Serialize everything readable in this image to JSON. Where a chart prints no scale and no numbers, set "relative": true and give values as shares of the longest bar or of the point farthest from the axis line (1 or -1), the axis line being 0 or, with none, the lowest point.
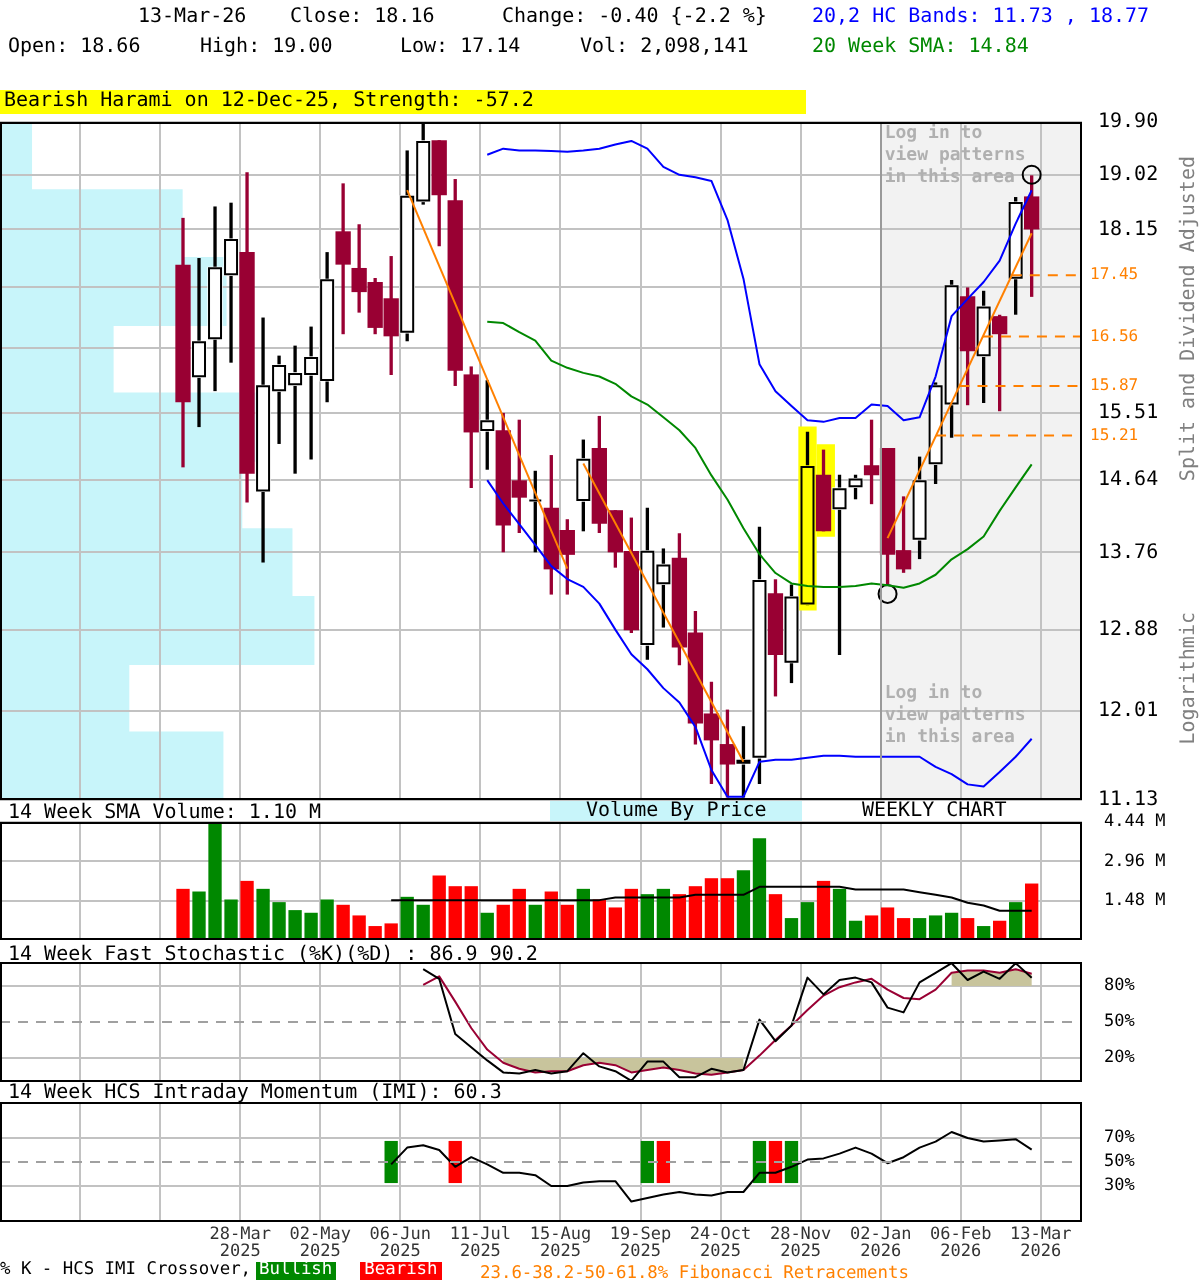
{
  "chart_data": [
    {
      "type": "candlestick",
      "subtitle": "Bearish Harami on 12-Dec-25, Strength: -57.2",
      "ylabel": "Split and Dividend Adjusted",
      "annotations": [
        "13-Mar-26",
        "Close: 18.16",
        "Change: -0.40 {-2.2 %}",
        "Open: 18.66",
        "High: 19.00",
        "Low: 17.14",
        "Vol: 2,098,141",
        "Logarithmic",
        "WEEKLY CHART"
      ],
      "x": [
        "2025-03-03",
        "2025-03-10",
        "2025-03-17",
        "2025-03-24",
        "2025-03-31",
        "2025-04-07",
        "2025-04-14",
        "2025-04-21",
        "2025-04-28",
        "2025-05-05",
        "2025-05-12",
        "2025-05-19",
        "2025-05-26",
        "2025-06-02",
        "2025-06-09",
        "2025-06-16",
        "2025-06-23",
        "2025-06-30",
        "2025-07-07",
        "2025-07-14",
        "2025-07-21",
        "2025-07-28",
        "2025-08-04",
        "2025-08-11",
        "2025-08-18",
        "2025-08-25",
        "2025-09-01",
        "2025-09-08",
        "2025-09-15",
        "2025-09-22",
        "2025-09-29",
        "2025-10-06",
        "2025-10-13",
        "2025-10-20",
        "2025-10-27",
        "2025-11-03",
        "2025-11-10",
        "2025-11-17",
        "2025-11-24",
        "2025-12-01",
        "2025-12-08",
        "2025-12-15",
        "2025-12-22",
        "2025-12-29",
        "2026-01-05",
        "2026-01-12",
        "2026-01-19",
        "2026-01-26",
        "2026-02-02",
        "2026-02-09",
        "2026-02-16",
        "2026-02-23",
        "2026-03-02",
        "2026-03-09"
      ],
      "ohlc": [
        [
          17.6,
          18.32,
          14.81,
          15.66
        ],
        [
          15.99,
          17.7,
          15.33,
          16.49
        ],
        [
          16.52,
          18.5,
          15.81,
          17.57
        ],
        [
          17.45,
          18.56,
          16.2,
          18.0
        ],
        [
          17.79,
          19.05,
          14.37,
          14.73
        ],
        [
          14.5,
          16.82,
          13.65,
          15.88
        ],
        [
          15.8,
          16.28,
          15.11,
          16.16
        ],
        [
          15.88,
          16.42,
          14.73,
          16.05
        ],
        [
          16.02,
          16.69,
          14.91,
          16.27
        ],
        [
          15.94,
          17.79,
          15.66,
          17.39
        ],
        [
          18.11,
          18.87,
          16.6,
          17.62
        ],
        [
          17.55,
          18.22,
          16.91,
          17.21
        ],
        [
          17.34,
          17.4,
          16.6,
          16.69
        ],
        [
          17.1,
          17.73,
          16.03,
          16.57
        ],
        [
          16.61,
          19.41,
          16.5,
          18.68
        ],
        [
          18.59,
          19.89,
          18.55,
          19.58
        ],
        [
          19.58,
          19.58,
          17.9,
          18.7
        ],
        [
          18.6,
          18.94,
          15.88,
          16.09
        ],
        [
          16.02,
          16.13,
          14.55,
          15.26
        ],
        [
          15.27,
          15.94,
          14.78,
          15.41
        ],
        [
          15.27,
          15.5,
          13.77,
          14.09
        ],
        [
          14.63,
          15.41,
          14.0,
          14.43
        ],
        [
          14.38,
          14.75,
          13.77,
          14.4
        ],
        [
          14.29,
          14.95,
          13.28,
          13.57
        ],
        [
          14.02,
          14.15,
          13.28,
          13.74
        ],
        [
          14.38,
          15.15,
          14.02,
          14.91
        ],
        [
          15.04,
          15.46,
          14.0,
          14.11
        ],
        [
          14.26,
          14.26,
          13.59,
          13.77
        ],
        [
          13.77,
          14.17,
          12.85,
          12.88
        ],
        [
          12.71,
          14.29,
          12.56,
          13.78
        ],
        [
          13.39,
          13.8,
          12.91,
          13.62
        ],
        [
          13.69,
          13.98,
          12.5,
          12.69
        ],
        [
          12.84,
          13.08,
          11.68,
          11.89
        ],
        [
          11.98,
          12.31,
          11.29,
          11.72
        ],
        [
          11.67,
          12.02,
          11.16,
          11.48
        ],
        [
          11.48,
          11.85,
          11.16,
          11.52
        ],
        [
          11.54,
          14.06,
          11.29,
          13.44
        ],
        [
          13.28,
          13.44,
          12.17,
          12.61
        ],
        [
          12.52,
          13.38,
          12.31,
          13.25
        ],
        [
          13.16,
          15.25,
          13.16,
          14.82
        ],
        [
          14.7,
          15.02,
          14.02,
          14.02
        ],
        [
          14.28,
          14.7,
          12.61,
          14.54
        ],
        [
          14.55,
          14.7,
          14.41,
          14.66
        ],
        [
          14.82,
          15.41,
          14.35,
          14.71
        ],
        [
          15.04,
          15.04,
          13.4,
          13.74
        ],
        [
          13.78,
          14.43,
          13.53,
          13.57
        ],
        [
          13.91,
          14.93,
          13.69,
          14.64
        ],
        [
          14.84,
          15.91,
          14.6,
          15.88
        ],
        [
          15.62,
          17.37,
          15.19,
          17.3
        ],
        [
          17.13,
          17.26,
          15.62,
          16.36
        ],
        [
          16.28,
          17.21,
          15.65,
          16.99
        ],
        [
          16.84,
          16.86,
          15.54,
          16.6
        ],
        [
          17.4,
          18.65,
          16.88,
          18.58
        ],
        [
          18.66,
          19.0,
          17.14,
          18.16
        ]
      ],
      "colors": [
        "#990033",
        "#ffffff",
        "#ffffff",
        "#ffffff",
        "#990033",
        "#ffffff",
        "#ffffff",
        "#ffffff",
        "#ffffff",
        "#ffffff",
        "#990033",
        "#990033",
        "#990033",
        "#990033",
        "#ffffff",
        "#ffffff",
        "#990033",
        "#990033",
        "#990033",
        "#ffffff",
        "#990033",
        "#990033",
        "#ffffff",
        "#990033",
        "#990033",
        "#ffffff",
        "#990033",
        "#990033",
        "#990033",
        "#ffffff",
        "#ffffff",
        "#990033",
        "#990033",
        "#990033",
        "#990033",
        "#ffffff",
        "#ffffff",
        "#990033",
        "#ffffff",
        "#ffff00",
        "#990033",
        "#ffffff",
        "#ffffff",
        "#990033",
        "#990033",
        "#990033",
        "#ffffff",
        "#ffffff",
        "#ffffff",
        "#990033",
        "#ffffff",
        "#990033",
        "#ffffff",
        "#990033"
      ],
      "series": [
        {
          "type": "line",
          "name": "20,2 HC Bands: 11.73 , 18.77",
          "color": "#0000ff",
          "values": [
            null,
            null,
            null,
            null,
            null,
            null,
            null,
            null,
            null,
            null,
            null,
            null,
            null,
            null,
            null,
            null,
            null,
            null,
            null,
            19.35,
            19.45,
            19.42,
            19.42,
            19.41,
            19.4,
            19.42,
            19.45,
            19.52,
            19.58,
            19.45,
            19.15,
            19.02,
            18.98,
            18.92,
            18.3,
            17.4,
            16.17,
            15.8,
            15.6,
            15.41,
            15.39,
            15.44,
            15.44,
            15.62,
            15.6,
            15.41,
            15.45,
            16.0,
            16.85,
            17.1,
            17.35,
            17.67,
            18.24,
            18.77
          ]
        },
        {
          "type": "line",
          "color": "#0000ff",
          "values": [
            null,
            null,
            null,
            null,
            null,
            null,
            null,
            null,
            null,
            null,
            null,
            null,
            null,
            null,
            null,
            null,
            null,
            null,
            null,
            14.64,
            14.35,
            14.1,
            13.85,
            13.6,
            13.45,
            13.36,
            13.17,
            12.88,
            12.61,
            12.45,
            12.25,
            12.1,
            11.85,
            11.42,
            11.16,
            11.16,
            11.5,
            11.52,
            11.52,
            11.54,
            11.56,
            11.56,
            11.55,
            11.55,
            11.55,
            11.55,
            11.55,
            11.45,
            11.38,
            11.28,
            11.26,
            11.4,
            11.55,
            11.73
          ]
        },
        {
          "type": "line",
          "name": "20 Week SMA: 14.84",
          "color": "#008800",
          "values": [
            null,
            null,
            null,
            null,
            null,
            null,
            null,
            null,
            null,
            null,
            null,
            null,
            null,
            null,
            null,
            null,
            null,
            null,
            null,
            16.77,
            16.75,
            16.62,
            16.5,
            16.22,
            16.12,
            16.05,
            16.0,
            15.9,
            15.73,
            15.62,
            15.45,
            15.28,
            15.05,
            14.7,
            14.4,
            14.05,
            13.74,
            13.52,
            13.4,
            13.37,
            13.36,
            13.36,
            13.37,
            13.4,
            13.38,
            13.35,
            13.4,
            13.5,
            13.68,
            13.8,
            13.95,
            14.26,
            14.55,
            14.84
          ]
        },
        {
          "type": "scatter",
          "marker": "circle",
          "color": "#000000",
          "x": [
            "2026-01-05",
            "2026-03-09"
          ],
          "values": [
            13.28,
            19.02
          ]
        },
        {
          "type": "line",
          "color": "#ff8000",
          "x": [
            "2025-06-09",
            "2025-08-18"
          ],
          "values": [
            18.77,
            13.57
          ]
        },
        {
          "type": "line",
          "color": "#ff8000",
          "x": [
            "2025-08-25",
            "2025-11-03"
          ],
          "values": [
            14.85,
            11.5
          ]
        },
        {
          "type": "line",
          "color": "#ff8000",
          "x": [
            "2026-01-05",
            "2026-03-09"
          ],
          "values": [
            13.93,
            18.09
          ]
        }
      ],
      "xlim": [
        "2024-12-13",
        "2026-03-31"
      ],
      "xticks": [
        {
          "value": "2025-01-17",
          "label": null
        },
        {
          "value": "2025-02-21",
          "label": null
        },
        {
          "value": "2025-03-28",
          "label": null
        },
        {
          "value": "2025-05-02",
          "label": null
        },
        {
          "value": "2025-06-06",
          "label": null
        },
        {
          "value": "2025-07-11",
          "label": null
        },
        {
          "value": "2025-08-15",
          "label": null
        },
        {
          "value": "2025-09-19",
          "label": null
        },
        {
          "value": "2025-10-24",
          "label": null
        },
        {
          "value": "2025-11-28",
          "label": null
        },
        {
          "value": "2026-01-02",
          "label": null
        },
        {
          "value": "2026-02-06",
          "label": null
        },
        {
          "value": "2026-03-13",
          "label": null
        }
      ],
      "ylim": [
        11.13,
        19.9
      ],
      "yticks": [
        11.13,
        12.01,
        12.88,
        13.76,
        14.64,
        15.51,
        {
          "value": 16.39,
          "label": null
        },
        {
          "value": 17.27,
          "label": null
        },
        18.15,
        19.02,
        {
          "value": 19.9,
          "label": "19.90"
        }
      ],
      "log": true,
      "grid": true,
      "legend": "top right",
      "tick_labels": "y",
      "ref_lines": [
        {
          "axis": "y",
          "value": 17.45,
          "label": "17.45",
          "color": "#ff8000",
          "line_style": "dashed"
        },
        {
          "axis": "y",
          "value": 16.56,
          "label": "16.56",
          "color": "#ff8000",
          "line_style": "dashed"
        },
        {
          "axis": "y",
          "value": 15.87,
          "label": "15.87",
          "color": "#ff8000",
          "line_style": "dashed"
        },
        {
          "axis": "y",
          "value": 15.21,
          "label": "15.21",
          "color": "#ff8000",
          "line_style": "dashed"
        },
        {
          "axis": "x",
          "value": "2026-01-02",
          "color": "#9a9a9a"
        }
      ],
      "bands": [
        {
          "axis": "x",
          "from": "2026-01-02",
          "to": "2026-03-31",
          "label": "Log in to view patterns in this area",
          "color": "#f2f2f2"
        },
        {
          "axis": "x",
          "from": "2025-11-27",
          "to": "2025-12-05",
          "color": "#ffff00"
        },
        {
          "axis": "x",
          "from": "2025-12-05",
          "to": "2025-12-13",
          "color": "#ffff00"
        }
      ]
    },
    {
      "type": "bar",
      "orientation": "horizontal",
      "relative": true,
      "categories": [
        null,
        null,
        null,
        null,
        null,
        null,
        null,
        null,
        null,
        null
      ],
      "series": [
        {
          "name": "Volume By Price",
          "color": "#c8f5fa",
          "values": [
            0.1,
            0.58,
            0.72,
            0.36,
            0.83,
            0.77,
            0.93,
            1,
            0.41,
            0.71
          ]
        }
      ],
      "legend": "bottom",
      "tick_labels": false
    },
    {
      "type": "bar",
      "title": "14 Week SMA Volume: 1.10 M",
      "x": [
        "2025-03-03",
        "2025-03-10",
        "2025-03-17",
        "2025-03-24",
        "2025-03-31",
        "2025-04-07",
        "2025-04-14",
        "2025-04-21",
        "2025-04-28",
        "2025-05-05",
        "2025-05-12",
        "2025-05-19",
        "2025-05-26",
        "2025-06-02",
        "2025-06-09",
        "2025-06-16",
        "2025-06-23",
        "2025-06-30",
        "2025-07-07",
        "2025-07-14",
        "2025-07-21",
        "2025-07-28",
        "2025-08-04",
        "2025-08-11",
        "2025-08-18",
        "2025-08-25",
        "2025-09-01",
        "2025-09-08",
        "2025-09-15",
        "2025-09-22",
        "2025-09-29",
        "2025-10-06",
        "2025-10-13",
        "2025-10-20",
        "2025-10-27",
        "2025-11-03",
        "2025-11-10",
        "2025-11-17",
        "2025-11-24",
        "2025-12-01",
        "2025-12-08",
        "2025-12-15",
        "2025-12-22",
        "2025-12-29",
        "2026-01-05",
        "2026-01-12",
        "2026-01-19",
        "2026-01-26",
        "2026-02-02",
        "2026-02-09",
        "2026-02-16",
        "2026-02-23",
        "2026-03-02",
        "2026-03-09"
      ],
      "series": [
        {
          "type": "bar",
          "colors": [
            "#ff0000",
            "#008800",
            "#008800",
            "#008800",
            "#ff0000",
            "#008800",
            "#008800",
            "#008800",
            "#008800",
            "#008800",
            "#ff0000",
            "#ff0000",
            "#ff0000",
            "#ff0000",
            "#008800",
            "#008800",
            "#ff0000",
            "#ff0000",
            "#ff0000",
            "#008800",
            "#ff0000",
            "#ff0000",
            "#008800",
            "#ff0000",
            "#ff0000",
            "#008800",
            "#ff0000",
            "#ff0000",
            "#ff0000",
            "#008800",
            "#008800",
            "#ff0000",
            "#ff0000",
            "#ff0000",
            "#ff0000",
            "#008800",
            "#008800",
            "#ff0000",
            "#008800",
            "#008800",
            "#ff0000",
            "#008800",
            "#008800",
            "#ff0000",
            "#ff0000",
            "#ff0000",
            "#008800",
            "#008800",
            "#008800",
            "#ff0000",
            "#008800",
            "#ff0000",
            "#008800",
            "#ff0000"
          ],
          "values": [
            1.9,
            1.8,
            4.4,
            1.5,
            2.2,
            1.9,
            1.4,
            1.1,
            1.0,
            1.5,
            1.3,
            0.9,
            0.5,
            0.6,
            1.6,
            1.3,
            2.4,
            2.0,
            2.0,
            1.0,
            1.3,
            1.9,
            1.3,
            1.8,
            1.3,
            1.9,
            1.5,
            1.2,
            1.9,
            1.7,
            1.9,
            1.7,
            2.0,
            2.3,
            2.3,
            2.6,
            3.8,
            1.7,
            0.8,
            1.4,
            2.2,
            1.9,
            0.7,
            0.9,
            1.2,
            0.8,
            0.8,
            0.9,
            1.0,
            0.8,
            0.5,
            0.7,
            1.4,
            2.1
          ]
        },
        {
          "type": "line",
          "color": "#000000",
          "values": [
            null,
            null,
            null,
            null,
            null,
            null,
            null,
            null,
            null,
            null,
            null,
            null,
            null,
            1.5,
            1.5,
            1.5,
            1.5,
            1.5,
            1.5,
            1.5,
            1.5,
            1.5,
            1.5,
            1.5,
            1.5,
            1.5,
            1.5,
            1.6,
            1.6,
            1.6,
            1.6,
            1.6,
            1.7,
            1.7,
            1.7,
            1.7,
            2.0,
            2.0,
            2.0,
            2.0,
            2.0,
            2.0,
            1.9,
            1.9,
            1.9,
            1.9,
            1.8,
            1.7,
            1.6,
            1.4,
            1.3,
            1.1,
            1.1,
            1.1
          ]
        }
      ],
      "xlim": [
        "2024-12-13",
        "2026-03-31"
      ],
      "xticks": [
        {
          "value": "2025-01-17",
          "label": null
        },
        {
          "value": "2025-02-21",
          "label": null
        },
        {
          "value": "2025-03-28",
          "label": null
        },
        {
          "value": "2025-05-02",
          "label": null
        },
        {
          "value": "2025-06-06",
          "label": null
        },
        {
          "value": "2025-07-11",
          "label": null
        },
        {
          "value": "2025-08-15",
          "label": null
        },
        {
          "value": "2025-09-19",
          "label": null
        },
        {
          "value": "2025-10-24",
          "label": null
        },
        {
          "value": "2025-11-28",
          "label": null
        },
        {
          "value": "2026-01-02",
          "label": null
        },
        {
          "value": "2026-02-06",
          "label": null
        },
        {
          "value": "2026-03-13",
          "label": null
        }
      ],
      "ylim": [
        0,
        4.44
      ],
      "yticks": [
        {
          "value": 1.48,
          "label": "1.48 M"
        },
        {
          "value": 2.96,
          "label": "2.96 M"
        },
        {
          "value": 4.44,
          "label": "4.44 M"
        }
      ],
      "grid": true,
      "tick_labels": "y"
    },
    {
      "type": "line",
      "title": "14 Week Fast Stochastic (%K)(%D) : 86.9 90.2",
      "x": [
        "2025-06-16",
        "2025-06-23",
        "2025-06-30",
        "2025-07-07",
        "2025-07-14",
        "2025-07-21",
        "2025-07-28",
        "2025-08-04",
        "2025-08-11",
        "2025-08-18",
        "2025-08-25",
        "2025-09-01",
        "2025-09-08",
        "2025-09-15",
        "2025-09-22",
        "2025-09-29",
        "2025-10-06",
        "2025-10-13",
        "2025-10-20",
        "2025-10-27",
        "2025-11-03",
        "2025-11-10",
        "2025-11-17",
        "2025-11-24",
        "2025-12-01",
        "2025-12-08",
        "2025-12-15",
        "2025-12-22",
        "2025-12-29",
        "2026-01-05",
        "2026-01-12",
        "2026-01-19",
        "2026-01-26",
        "2026-02-02",
        "2026-02-09",
        "2026-02-16",
        "2026-02-23",
        "2026-03-02",
        "2026-03-09"
      ],
      "series": [
        {
          "color": "#000000",
          "values": [
            94,
            86,
            40,
            29,
            18,
            8,
            7,
            10,
            7,
            9,
            24,
            13,
            9,
            1,
            17,
            17,
            4,
            4,
            11,
            8,
            10,
            52,
            34,
            47,
            87,
            73,
            85,
            87,
            83,
            62,
            58,
            83,
            91,
            99,
            85,
            92,
            86,
            99,
            86.9
          ]
        },
        {
          "color": "#990033",
          "values": [
            81,
            88,
            67,
            45,
            27,
            16,
            11,
            8,
            9,
            9,
            14,
            16,
            14,
            8,
            10,
            12,
            10,
            7,
            6,
            8,
            10,
            22,
            35,
            47,
            60,
            72,
            79,
            83,
            86,
            77,
            70,
            69,
            77,
            91,
            93,
            93,
            91,
            94,
            90.2
          ],
          "lower": [
            null,
            null,
            null,
            null,
            null,
            16,
            11,
            8,
            9,
            9,
            14,
            16,
            14,
            8,
            10,
            12,
            10,
            7,
            6,
            8,
            10,
            null,
            null,
            null,
            null,
            null,
            null,
            null,
            null,
            null,
            null,
            null,
            null,
            80,
            80,
            80,
            80,
            80,
            80
          ],
          "upper": [
            null,
            null,
            null,
            null,
            null,
            20,
            20,
            20,
            20,
            20,
            20,
            20,
            20,
            20,
            20,
            20,
            20,
            20,
            20,
            20,
            20,
            null,
            null,
            null,
            null,
            null,
            null,
            null,
            null,
            null,
            null,
            null,
            null,
            91,
            93,
            93,
            91,
            94,
            90.2
          ]
        }
      ],
      "xlim": [
        "2024-12-13",
        "2026-03-31"
      ],
      "xticks": [
        {
          "value": "2025-01-17",
          "label": null
        },
        {
          "value": "2025-02-21",
          "label": null
        },
        {
          "value": "2025-03-28",
          "label": null
        },
        {
          "value": "2025-05-02",
          "label": null
        },
        {
          "value": "2025-06-06",
          "label": null
        },
        {
          "value": "2025-07-11",
          "label": null
        },
        {
          "value": "2025-08-15",
          "label": null
        },
        {
          "value": "2025-09-19",
          "label": null
        },
        {
          "value": "2025-10-24",
          "label": null
        },
        {
          "value": "2025-11-28",
          "label": null
        },
        {
          "value": "2026-01-02",
          "label": null
        },
        {
          "value": "2026-02-06",
          "label": null
        },
        {
          "value": "2026-03-13",
          "label": null
        }
      ],
      "ylim": [
        0,
        100
      ],
      "yticks": [
        {
          "value": 20,
          "label": "20%"
        },
        {
          "value": 50,
          "label": "50%"
        },
        {
          "value": 80,
          "label": "80%"
        }
      ],
      "grid": true,
      "tick_labels": "y",
      "ref_lines": [
        {
          "axis": "y",
          "value": 50,
          "color": "#a0a0a0",
          "line_style": "dashed"
        }
      ]
    },
    {
      "type": "line",
      "title": "14 Week HCS Intraday Momentum (IMI): 60.3",
      "legend_title": "% K - HCS IMI Crossover,",
      "annotations": [
        "23.6-38.2-50-61.8% Fibonacci Retracements"
      ],
      "x": [
        "2025-06-02",
        "2025-06-09",
        "2025-06-16",
        "2025-06-23",
        "2025-06-30",
        "2025-07-07",
        "2025-07-14",
        "2025-07-21",
        "2025-07-28",
        "2025-08-04",
        "2025-08-11",
        "2025-08-18",
        "2025-08-25",
        "2025-09-01",
        "2025-09-08",
        "2025-09-15",
        "2025-09-22",
        "2025-09-29",
        "2025-10-06",
        "2025-10-13",
        "2025-10-20",
        "2025-10-27",
        "2025-11-03",
        "2025-11-10",
        "2025-11-17",
        "2025-11-24",
        "2025-12-01",
        "2025-12-08",
        "2025-12-15",
        "2025-12-22",
        "2025-12-29",
        "2026-01-05",
        "2026-01-12",
        "2026-01-19",
        "2026-01-26",
        "2026-02-02",
        "2026-02-09",
        "2026-02-16",
        "2026-02-23",
        "2026-03-02",
        "2026-03-09"
      ],
      "series": [
        {
          "color": "#000000",
          "values": [
            48,
            62,
            64,
            60,
            46,
            54,
            48,
            41,
            41,
            39,
            30,
            30,
            33,
            34,
            34,
            17,
            20,
            23,
            25,
            23,
            22,
            25,
            25,
            41,
            41,
            46,
            52,
            53,
            57,
            62,
            57,
            49,
            54,
            62,
            67,
            75,
            70,
            67,
            68,
            69,
            60.3
          ]
        },
        {
          "type": "bar",
          "name": "Bullish",
          "color": "#008800",
          "x": [
            "2025-06-02",
            "2025-09-22",
            "2025-11-10",
            "2025-11-24"
          ],
          "base": [
            33,
            33,
            33,
            33
          ],
          "values": [
            34,
            34,
            34,
            34
          ]
        },
        {
          "type": "bar",
          "name": "Bearish",
          "color": "#ff0000",
          "x": [
            "2025-06-30",
            "2025-09-29",
            "2025-11-17"
          ],
          "base": [
            33,
            33,
            33
          ],
          "values": [
            34,
            34,
            34
          ]
        }
      ],
      "xlim": [
        "2024-12-13",
        "2026-03-31"
      ],
      "xticks": [
        {
          "value": "2025-01-17",
          "label": null
        },
        {
          "value": "2025-02-21",
          "label": null
        },
        {
          "value": "2025-03-28",
          "label": "28-Mar 2025"
        },
        {
          "value": "2025-05-02",
          "label": "02-May 2025"
        },
        {
          "value": "2025-06-06",
          "label": "06-Jun 2025"
        },
        {
          "value": "2025-07-11",
          "label": "11-Jul 2025"
        },
        {
          "value": "2025-08-15",
          "label": "15-Aug 2025"
        },
        {
          "value": "2025-09-19",
          "label": "19-Sep 2025"
        },
        {
          "value": "2025-10-24",
          "label": "24-Oct 2025"
        },
        {
          "value": "2025-11-28",
          "label": "28-Nov 2025"
        },
        {
          "value": "2026-01-02",
          "label": "02-Jan 2026"
        },
        {
          "value": "2026-02-06",
          "label": "06-Feb 2026"
        },
        {
          "value": "2026-03-13",
          "label": "13-Mar 2026"
        }
      ],
      "ylim": [
        0,
        100
      ],
      "yticks": [
        {
          "value": 30,
          "label": "30%"
        },
        {
          "value": 50,
          "label": "50%"
        },
        {
          "value": 70,
          "label": "70%"
        }
      ],
      "grid": true,
      "legend": "bottom",
      "ref_lines": [
        {
          "axis": "y",
          "value": 50,
          "color": "#a0a0a0",
          "line_style": "dashed"
        }
      ]
    }
  ]
}
